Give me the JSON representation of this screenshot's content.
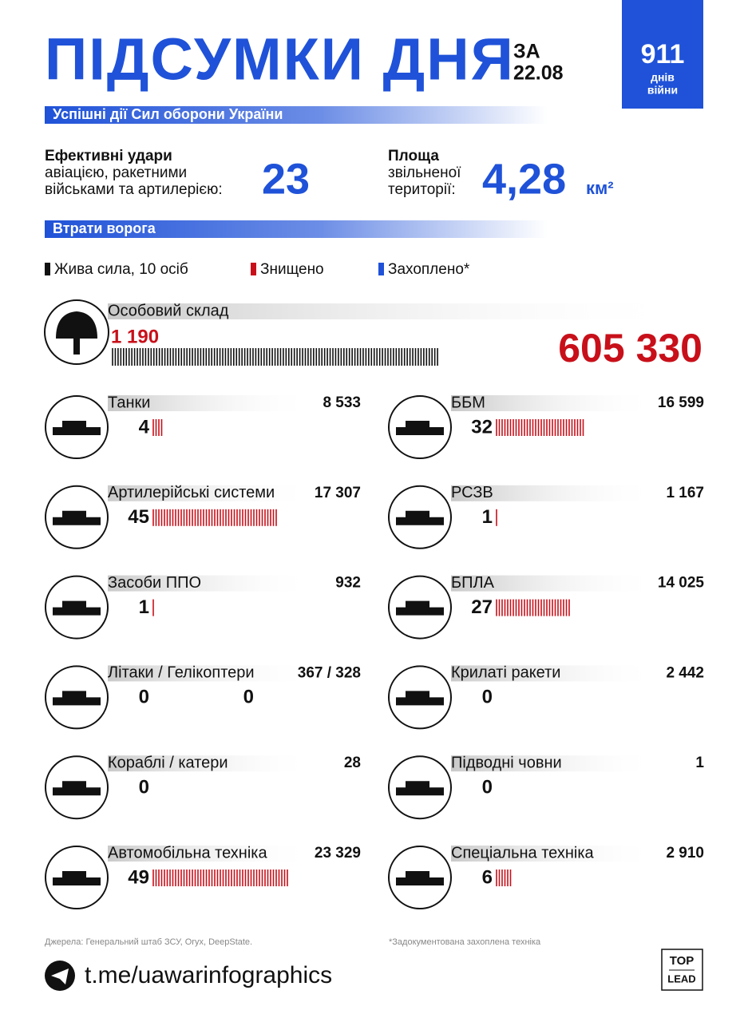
{
  "header": {
    "title": "ПІДСУМКИ ДНЯ",
    "date_prefix": "ЗА",
    "date": "22.08",
    "days": 911,
    "days_label": "днів",
    "war_label": "війни"
  },
  "section1": "Успішні дії Сил оборони України",
  "strikes": {
    "title": "Ефективні удари",
    "lines": [
      "авіацією, ракетними",
      "військами та артилерією:"
    ],
    "value": 23
  },
  "territory": {
    "title": "Площа",
    "lines": [
      "звільненої",
      "території:"
    ],
    "value": "4,28",
    "unit": "км²"
  },
  "section2": "Втрати ворога",
  "legend": [
    {
      "label": "Жива сила, 10 осіб",
      "color": "#111111"
    },
    {
      "label": "Знищено",
      "color": "#c8101a"
    },
    {
      "label": "Захоплено*",
      "color": "#1f52d8"
    }
  ],
  "personnel": {
    "label": "Особовий склад",
    "today": {
      "value": 1190,
      "label": "1 190"
    },
    "total": "605 330"
  },
  "items": [
    {
      "label": "Танки",
      "total": "8 533",
      "today": [
        4
      ]
    },
    {
      "label": "ББМ",
      "total": "16 599",
      "today": [
        32
      ]
    },
    {
      "label": "Артилерійські системи",
      "total": "17 307",
      "today": [
        45
      ]
    },
    {
      "label": "РСЗВ",
      "total": "1 167",
      "today": [
        1
      ]
    },
    {
      "label": "Засоби ППО",
      "total": "932",
      "today": [
        1
      ]
    },
    {
      "label": "БПЛА",
      "total": "14 025",
      "today": [
        27
      ]
    },
    {
      "label": "Літаки / Гелікоптери",
      "total": "367 / 328",
      "today": [
        0,
        0
      ]
    },
    {
      "label": "Крилаті ракети",
      "total": "2 442",
      "today": [
        0
      ]
    },
    {
      "label": "Кораблі / катери",
      "total": "28",
      "today": [
        0
      ]
    },
    {
      "label": "Підводні човни",
      "total": "1",
      "today": [
        0
      ]
    },
    {
      "label": "Автомобільна техніка",
      "total": "23 329",
      "today": [
        49
      ]
    },
    {
      "label": "Спеціальна техніка",
      "total": "2 910",
      "today": [
        6
      ]
    }
  ],
  "footer": {
    "sources": "Джерела: Генеральний штаб ЗСУ, Oryx, DeepState.",
    "note": "*Задокументована захоплена техніка",
    "link": "t.me/uawarinfographics",
    "brand_top": "TOP",
    "brand_bottom": "LEAD"
  }
}
